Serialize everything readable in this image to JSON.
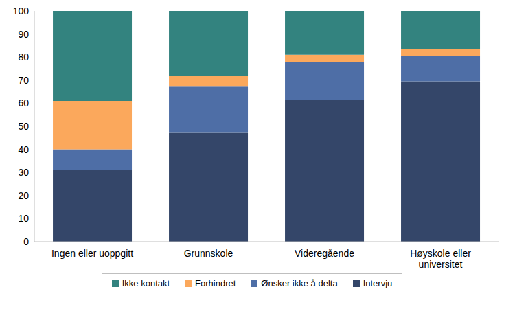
{
  "chart_data": {
    "type": "bar",
    "stacked": true,
    "categories": [
      "Ingen eller uoppgitt",
      "Grunnskole",
      "Videregående",
      "Høyskole eller universitet"
    ],
    "series": [
      {
        "name": "Ikke kontakt",
        "color": "#33837f",
        "values": [
          39,
          28,
          19,
          16.5
        ]
      },
      {
        "name": "Forhindret",
        "color": "#fba85c",
        "values": [
          21,
          4.5,
          3,
          3
        ]
      },
      {
        "name": "Ønsker ikke å delta",
        "color": "#4e6ea6",
        "values": [
          9,
          20,
          16.5,
          11
        ]
      },
      {
        "name": "Intervju",
        "color": "#344669",
        "values": [
          31,
          47.5,
          61.5,
          69.5
        ]
      }
    ],
    "ylim": [
      0,
      100
    ],
    "yticks": [
      0,
      10,
      20,
      30,
      40,
      50,
      60,
      70,
      80,
      90,
      100
    ],
    "grid": false,
    "legend": "bottom"
  }
}
